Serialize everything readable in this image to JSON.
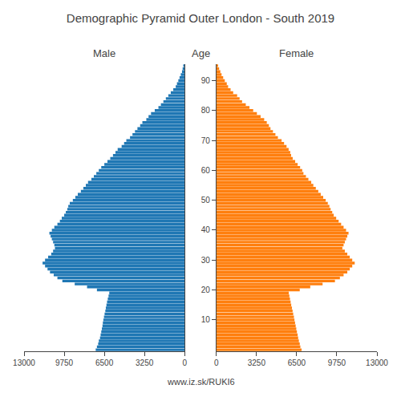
{
  "chart_data": {
    "type": "bar",
    "orientation": "horizontal",
    "title": "Demographic Pyramid Outer London - South 2019",
    "subtitle": "www.iz.sk/RUKI6",
    "ylabel": "Age",
    "grid": false,
    "categories": [
      0,
      1,
      2,
      3,
      4,
      5,
      6,
      7,
      8,
      9,
      10,
      11,
      12,
      13,
      14,
      15,
      16,
      17,
      18,
      19,
      20,
      21,
      22,
      23,
      24,
      25,
      26,
      27,
      28,
      29,
      30,
      31,
      32,
      33,
      34,
      35,
      36,
      37,
      38,
      39,
      40,
      41,
      42,
      43,
      44,
      45,
      46,
      47,
      48,
      49,
      50,
      51,
      52,
      53,
      54,
      55,
      56,
      57,
      58,
      59,
      60,
      61,
      62,
      63,
      64,
      65,
      66,
      67,
      68,
      69,
      70,
      71,
      72,
      73,
      74,
      75,
      76,
      77,
      78,
      79,
      80,
      81,
      82,
      83,
      84,
      85,
      86,
      87,
      88,
      89,
      90,
      91,
      92,
      93,
      94,
      95
    ],
    "ylim": [
      -0.5,
      95.5
    ],
    "yticks": [
      10,
      20,
      30,
      40,
      50,
      60,
      70,
      80,
      90
    ],
    "series": [
      {
        "name": "Male",
        "xlim": [
          13000,
          0
        ],
        "xticks": [
          13000,
          9750,
          6500,
          3250,
          0
        ],
        "values": [
          7200,
          7100,
          7000,
          6950,
          6850,
          6800,
          6750,
          6700,
          6650,
          6620,
          6580,
          6530,
          6480,
          6420,
          6380,
          6330,
          6280,
          6220,
          6160,
          6100,
          7100,
          7900,
          8900,
          9900,
          10300,
          10600,
          10900,
          11100,
          11300,
          11500,
          11300,
          11050,
          10800,
          10650,
          10500,
          10550,
          10650,
          10750,
          10850,
          10950,
          10750,
          10550,
          10300,
          10100,
          9950,
          9750,
          9620,
          9500,
          9420,
          9300,
          9050,
          8850,
          8650,
          8400,
          8200,
          8000,
          7820,
          7550,
          7350,
          7150,
          6950,
          6750,
          6500,
          6250,
          6020,
          5800,
          5600,
          5420,
          5100,
          4900,
          4720,
          4420,
          4220,
          4020,
          3820,
          3600,
          3420,
          3100,
          2920,
          2720,
          2420,
          2120,
          1920,
          1720,
          1520,
          1320,
          1120,
          920,
          720,
          620,
          510,
          410,
          310,
          210,
          160,
          110
        ]
      },
      {
        "name": "Female",
        "xlim": [
          0,
          13000
        ],
        "xticks": [
          0,
          3250,
          6500,
          9750,
          13000
        ],
        "values": [
          6900,
          6800,
          6750,
          6680,
          6620,
          6580,
          6520,
          6470,
          6420,
          6370,
          6320,
          6280,
          6220,
          6170,
          6120,
          6060,
          6010,
          5960,
          5910,
          5860,
          6750,
          7600,
          8600,
          9600,
          10000,
          10300,
          10600,
          10800,
          11000,
          11200,
          11000,
          10800,
          10600,
          10400,
          10200,
          10300,
          10400,
          10500,
          10600,
          10700,
          10500,
          10300,
          10100,
          9900,
          9700,
          9500,
          9380,
          9250,
          9150,
          9020,
          8850,
          8650,
          8450,
          8250,
          8050,
          7850,
          7680,
          7450,
          7250,
          7050,
          6950,
          6780,
          6580,
          6380,
          6180,
          6050,
          5980,
          5850,
          5680,
          5480,
          5280,
          4980,
          4780,
          4580,
          4380,
          4250,
          4080,
          3870,
          3580,
          3280,
          2980,
          2680,
          2380,
          2080,
          1880,
          1680,
          1360,
          1150,
          950,
          840,
          680,
          550,
          420,
          320,
          220,
          140
        ]
      }
    ]
  }
}
